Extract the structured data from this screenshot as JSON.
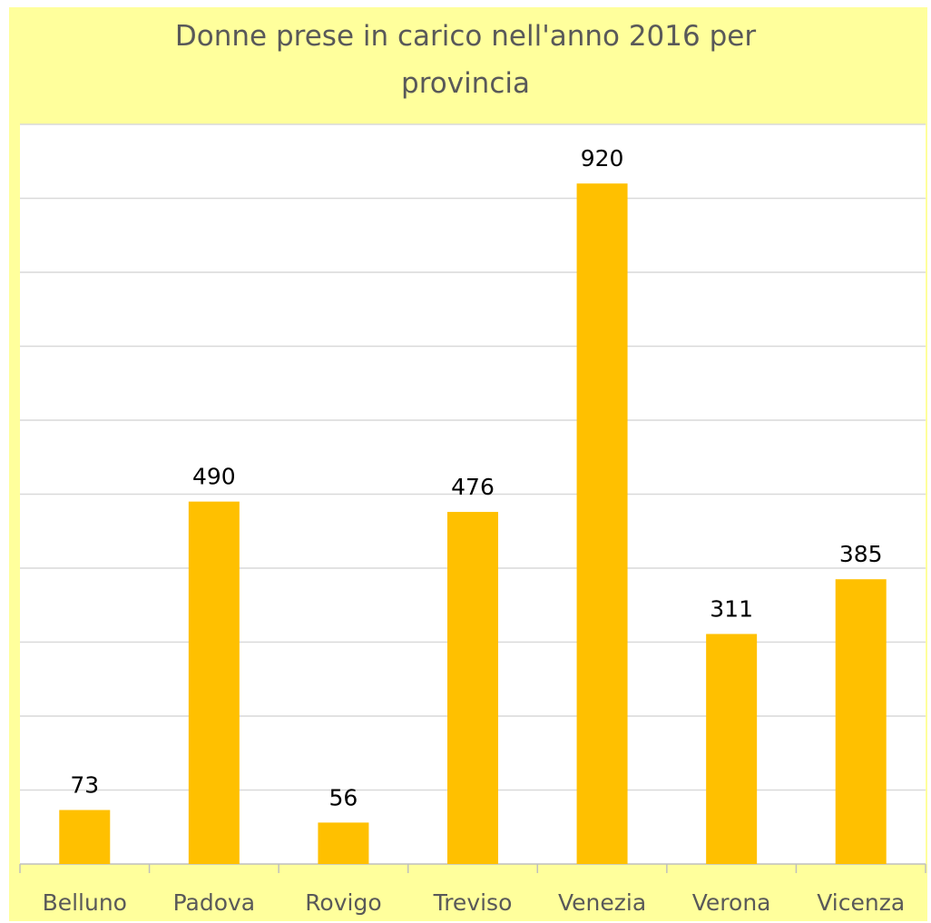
{
  "chart_data": {
    "type": "bar",
    "title": "Donne prese in carico nell'anno 2016 per provincia",
    "categories": [
      "Belluno",
      "Padova",
      "Rovigo",
      "Treviso",
      "Venezia",
      "Verona",
      "Vicenza"
    ],
    "values": [
      73,
      490,
      56,
      476,
      920,
      311,
      385
    ],
    "color": "#ffc000",
    "ylim": [
      0,
      1000
    ],
    "yticks": [
      0,
      100,
      200,
      300,
      400,
      500,
      600,
      700,
      800,
      900,
      1000
    ],
    "grid": true
  }
}
